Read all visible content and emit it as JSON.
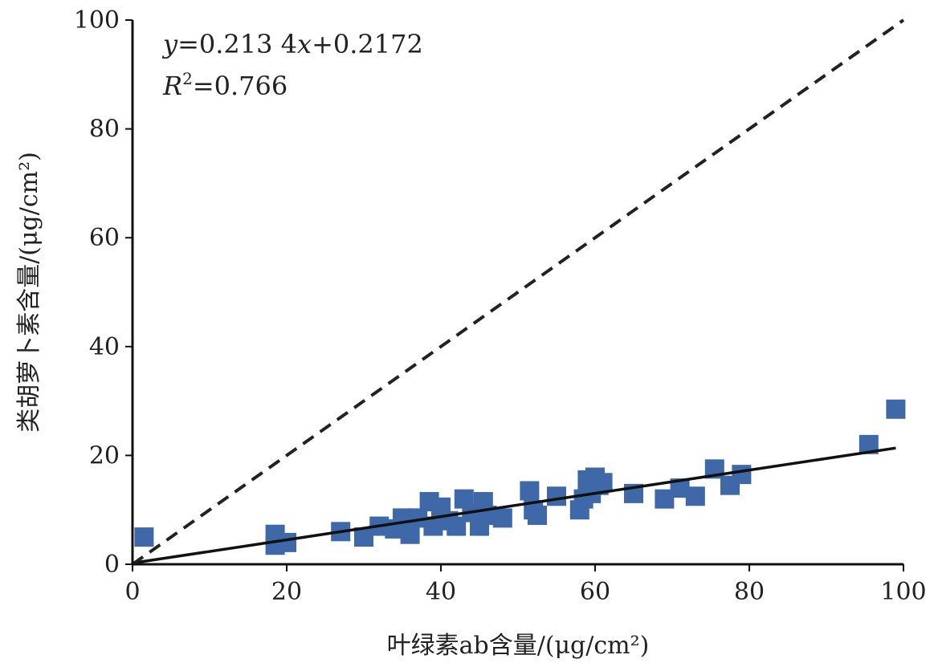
{
  "chart_data": {
    "type": "scatter",
    "xlabel": "叶绿素ab含量/(μg/cm²)",
    "ylabel": "类胡萝卜素含量/(μg/cm²)",
    "xlim": [
      0,
      100
    ],
    "ylim": [
      0,
      100
    ],
    "xticks": [
      0,
      20,
      40,
      60,
      80,
      100
    ],
    "yticks": [
      0,
      20,
      40,
      60,
      80,
      100
    ],
    "grid": false,
    "marker_color": "#3f68a8",
    "annotations": {
      "equation": {
        "y": "y",
        "mid": "=0.213 4",
        "x": "x",
        "rest": "+0.2172"
      },
      "r2": {
        "R": "R",
        "sup": "2",
        "rest": "=0.766"
      }
    },
    "series": [
      {
        "type": "scatter",
        "points": [
          [
            1.5,
            5
          ],
          [
            18.5,
            5.5
          ],
          [
            18.5,
            3.5
          ],
          [
            20,
            4
          ],
          [
            27,
            6
          ],
          [
            30,
            5
          ],
          [
            32,
            7
          ],
          [
            34,
            6.5
          ],
          [
            35,
            8.5
          ],
          [
            36,
            5.5
          ],
          [
            37,
            8.5
          ],
          [
            38.5,
            11.5
          ],
          [
            39,
            7
          ],
          [
            40,
            10.5
          ],
          [
            41,
            8
          ],
          [
            42,
            7
          ],
          [
            43,
            12
          ],
          [
            44,
            9.5
          ],
          [
            45,
            7
          ],
          [
            45.5,
            11.5
          ],
          [
            46,
            9
          ],
          [
            48,
            8.5
          ],
          [
            51.5,
            13.5
          ],
          [
            52,
            10
          ],
          [
            52.5,
            9
          ],
          [
            55,
            12.5
          ],
          [
            58,
            10
          ],
          [
            58.5,
            12
          ],
          [
            59,
            15.5
          ],
          [
            59.5,
            13
          ],
          [
            60,
            16
          ],
          [
            60.5,
            14.5
          ],
          [
            61,
            15
          ],
          [
            65,
            13
          ],
          [
            69,
            12
          ],
          [
            71,
            14
          ],
          [
            73,
            12.5
          ],
          [
            75.5,
            17.5
          ],
          [
            77.5,
            14.5
          ],
          [
            79,
            16.5
          ],
          [
            95.5,
            22
          ],
          [
            99,
            28.5
          ]
        ]
      },
      {
        "type": "line",
        "style": "solid",
        "color": "#111111",
        "points": [
          [
            0,
            0.2172
          ],
          [
            99,
            21.36
          ]
        ]
      },
      {
        "type": "line",
        "style": "dashed",
        "color": "#222222",
        "points": [
          [
            0,
            0
          ],
          [
            100,
            100
          ]
        ]
      }
    ]
  }
}
